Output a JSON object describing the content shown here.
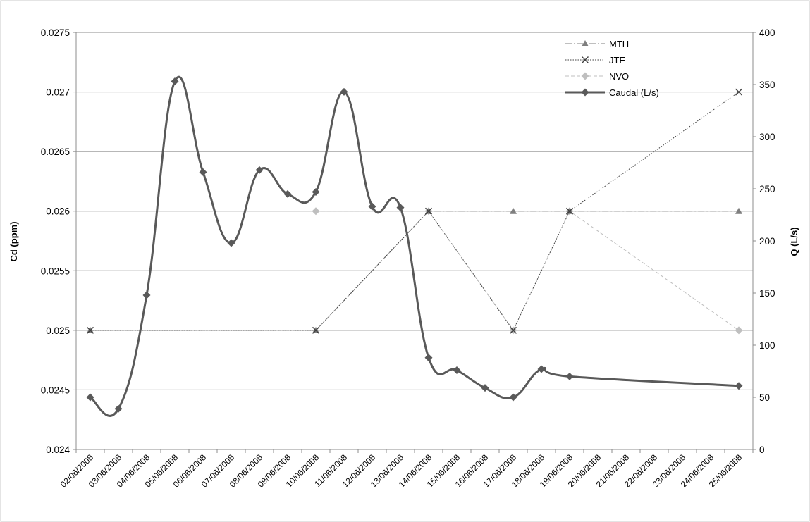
{
  "chart_data": {
    "type": "line",
    "title": "",
    "xlabel": "",
    "ylabel_left": "Cd (ppm)",
    "ylabel_right": "Q (L/s)",
    "ylim_left": [
      0.024,
      0.0275
    ],
    "yticks_left": [
      "0.024",
      "0.0245",
      "0.025",
      "0.0255",
      "0.026",
      "0.0265",
      "0.027",
      "0.0275"
    ],
    "ylim_right": [
      0,
      400
    ],
    "yticks_right": [
      "0",
      "50",
      "100",
      "150",
      "200",
      "250",
      "300",
      "350",
      "400"
    ],
    "grid": "horizontal",
    "legend_position": "top-right",
    "categories": [
      "02/06/2008",
      "03/06/2008",
      "04/06/2008",
      "05/06/2008",
      "06/06/2008",
      "07/06/2008",
      "08/06/2008",
      "09/06/2008",
      "10/06/2008",
      "11/06/2008",
      "12/06/2008",
      "13/06/2008",
      "14/06/2008",
      "15/06/2008",
      "16/06/2008",
      "17/06/2008",
      "18/06/2008",
      "19/06/2008",
      "20/06/2008",
      "21/06/2008",
      "22/06/2008",
      "23/06/2008",
      "24/06/2008",
      "25/06/2008"
    ],
    "series": [
      {
        "name": "MTH",
        "axis": "left",
        "style": "dash-dot",
        "marker": "triangle",
        "color": "#7f7f7f",
        "points": [
          [
            "02/06/2008",
            0.025
          ],
          [
            "10/06/2008",
            0.025
          ],
          [
            "14/06/2008",
            0.026
          ],
          [
            "17/06/2008",
            0.026
          ],
          [
            "19/06/2008",
            0.026
          ],
          [
            "25/06/2008",
            0.026
          ]
        ]
      },
      {
        "name": "JTE",
        "axis": "left",
        "style": "dotted",
        "marker": "x",
        "color": "#404040",
        "points": [
          [
            "02/06/2008",
            0.025
          ],
          [
            "10/06/2008",
            0.025
          ],
          [
            "14/06/2008",
            0.026
          ],
          [
            "17/06/2008",
            0.025
          ],
          [
            "19/06/2008",
            0.026
          ],
          [
            "25/06/2008",
            0.027
          ]
        ]
      },
      {
        "name": "NVO",
        "axis": "left",
        "style": "dashed",
        "marker": "diamond",
        "color": "#bfbfbf",
        "points": [
          [
            "10/06/2008",
            0.026
          ],
          [
            "14/06/2008",
            0.026
          ],
          [
            "17/06/2008",
            0.025
          ],
          [
            "19/06/2008",
            0.026
          ],
          [
            "25/06/2008",
            0.025
          ]
        ]
      },
      {
        "name": "Caudal (L/s)",
        "axis": "right",
        "style": "solid-smooth",
        "marker": "diamond",
        "color": "#595959",
        "points": [
          [
            "02/06/2008",
            50
          ],
          [
            "03/06/2008",
            39
          ],
          [
            "04/06/2008",
            148
          ],
          [
            "05/06/2008",
            353
          ],
          [
            "06/06/2008",
            266
          ],
          [
            "07/06/2008",
            198
          ],
          [
            "08/06/2008",
            268
          ],
          [
            "09/06/2008",
            245
          ],
          [
            "10/06/2008",
            247
          ],
          [
            "11/06/2008",
            343
          ],
          [
            "12/06/2008",
            233
          ],
          [
            "13/06/2008",
            232
          ],
          [
            "14/06/2008",
            88
          ],
          [
            "15/06/2008",
            76
          ],
          [
            "16/06/2008",
            59
          ],
          [
            "17/06/2008",
            50
          ],
          [
            "18/06/2008",
            77
          ],
          [
            "19/06/2008",
            70
          ],
          [
            "25/06/2008",
            61
          ]
        ]
      }
    ]
  }
}
